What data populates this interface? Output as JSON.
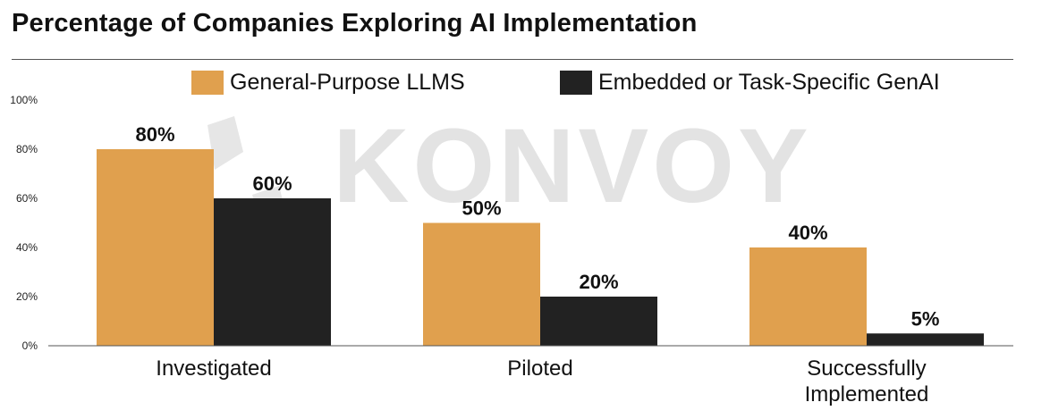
{
  "title": "Percentage of Companies Exploring AI Implementation",
  "watermark": "KONVOY",
  "colors": {
    "general": "#E0A04E",
    "embedded": "#222222",
    "axis": "#555555",
    "watermark": "#e3e3e3"
  },
  "chart_data": {
    "type": "bar",
    "categories": [
      "Investigated",
      "Piloted",
      "Successfully Implemented"
    ],
    "series": [
      {
        "name": "General-Purpose LLMS",
        "values": [
          80,
          50,
          40
        ],
        "labels": [
          "80%",
          "50%",
          "40%"
        ]
      },
      {
        "name": "Embedded or Task-Specific GenAI",
        "values": [
          60,
          20,
          5
        ],
        "labels": [
          "60%",
          "20%",
          "5%"
        ]
      }
    ],
    "yticks": [
      "0%",
      "20%",
      "40%",
      "60%",
      "80%",
      "100%"
    ],
    "ylim": [
      0,
      100
    ],
    "legend": "top-right",
    "grid": false
  }
}
